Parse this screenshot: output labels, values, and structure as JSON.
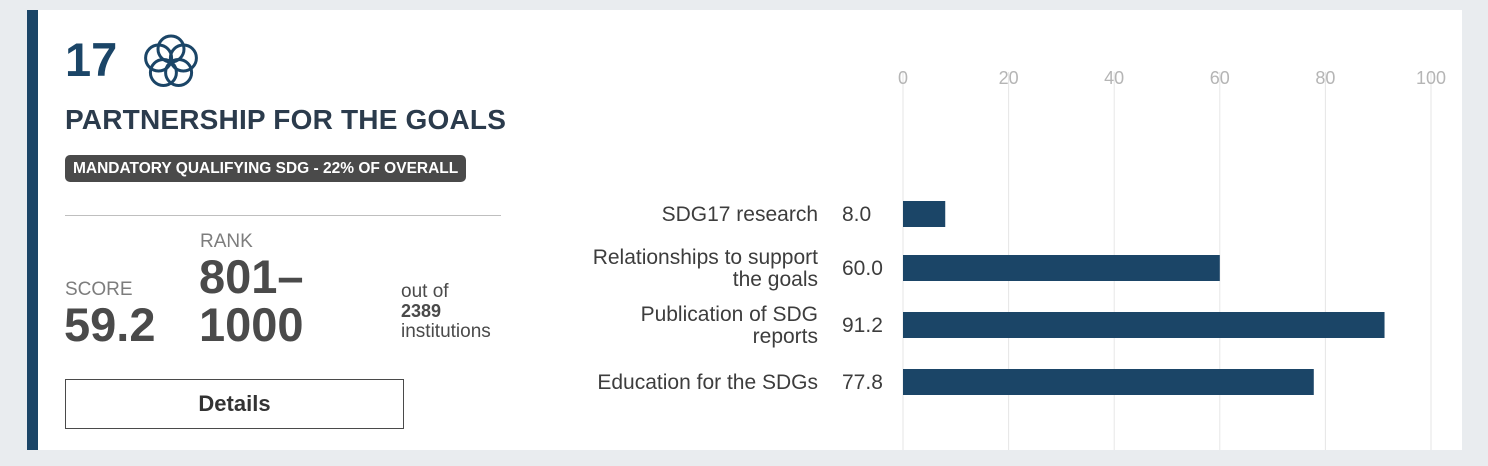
{
  "sdg": {
    "number": "17",
    "icon": "sdg17-interlocking-circles-icon",
    "title": "PARTNERSHIP FOR THE GOALS",
    "badge": "MANDATORY QUALIFYING SDG - 22% OF OVERALL"
  },
  "stats": {
    "score_label": "SCORE",
    "score_value": "59.2",
    "rank_label": "RANK",
    "rank_line1": "801–",
    "rank_line2": "1000",
    "out_of": "out of",
    "total_institutions": "2389",
    "institutions_label": "institutions"
  },
  "details_button": "Details",
  "colors": {
    "accent": "#1b4567",
    "bar": "#1b4567",
    "badge_bg": "#4a4a4a"
  },
  "chart_data": {
    "type": "bar",
    "orientation": "horizontal",
    "categories": [
      [
        "SDG17 research"
      ],
      [
        "Relationships to support",
        "the goals"
      ],
      [
        "Publication of SDG",
        "reports"
      ],
      [
        "Education for the SDGs"
      ]
    ],
    "values": [
      8.0,
      60.0,
      91.2,
      77.8
    ],
    "value_labels": [
      "8.0",
      "60.0",
      "91.2",
      "77.8"
    ],
    "xlim": [
      0,
      100
    ],
    "xticks": [
      0,
      20,
      40,
      60,
      80,
      100
    ],
    "tick_labels": [
      "0",
      "20",
      "40",
      "60",
      "80",
      "100"
    ],
    "grid": true,
    "axis_position": "top"
  }
}
